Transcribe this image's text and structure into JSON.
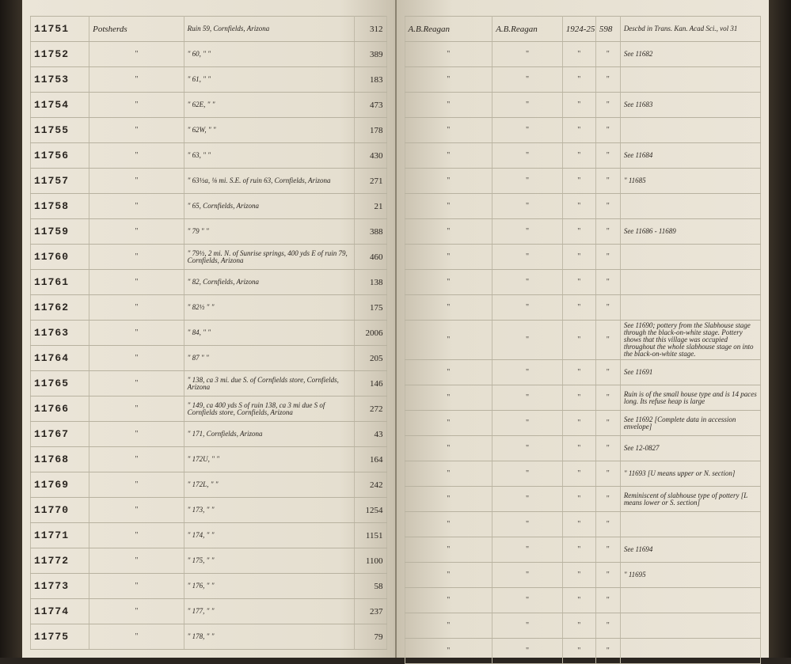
{
  "left_page": {
    "rows": [
      {
        "id": "11751",
        "name": "Potsherds",
        "location": "Ruin 59, Cornfields, Arizona",
        "count": "312"
      },
      {
        "id": "11752",
        "name": "\"",
        "location": "\"  60,    \"    \"",
        "count": "389"
      },
      {
        "id": "11753",
        "name": "\"",
        "location": "\"  61,    \"    \"",
        "count": "183"
      },
      {
        "id": "11754",
        "name": "\"",
        "location": "\"  62E,   \"    \"",
        "count": "473"
      },
      {
        "id": "11755",
        "name": "\"",
        "location": "\"  62W,   \"    \"",
        "count": "178"
      },
      {
        "id": "11756",
        "name": "\"",
        "location": "\"  63,    \"    \"",
        "count": "430"
      },
      {
        "id": "11757",
        "name": "\"",
        "location": "\"  63½a, ⅛ mi. S.E. of ruin 63, Cornfields, Arizona",
        "count": "271"
      },
      {
        "id": "11758",
        "name": "\"",
        "location": "\"  65, Cornfields, Arizona",
        "count": "21"
      },
      {
        "id": "11759",
        "name": "\"",
        "location": "\"  79    \"    \"",
        "count": "388"
      },
      {
        "id": "11760",
        "name": "\"",
        "location": "\"  79½, 2 mi. N. of Sunrise springs, 400 yds E of ruin 79, Cornfields, Arizona",
        "count": "460"
      },
      {
        "id": "11761",
        "name": "\"",
        "location": "\"  82, Cornfields, Arizona",
        "count": "138"
      },
      {
        "id": "11762",
        "name": "\"",
        "location": "\"  82½    \"    \"",
        "count": "175"
      },
      {
        "id": "11763",
        "name": "\"",
        "location": "\"  84,    \"    \"",
        "count": "2006"
      },
      {
        "id": "11764",
        "name": "\"",
        "location": "\"  87     \"    \"",
        "count": "205"
      },
      {
        "id": "11765",
        "name": "\"",
        "location": "\"  138, ca 3 mi. due S. of Cornfields store, Cornfields, Arizona",
        "count": "146"
      },
      {
        "id": "11766",
        "name": "\"",
        "location": "\"  149, ca 400 yds S of ruin 138, ca 3 mi due S of Cornfields store, Cornfields, Arizona",
        "count": "272"
      },
      {
        "id": "11767",
        "name": "\"",
        "location": "\"  171, Cornfields, Arizona",
        "count": "43"
      },
      {
        "id": "11768",
        "name": "\"",
        "location": "\"  172U,  \"    \"",
        "count": "164"
      },
      {
        "id": "11769",
        "name": "\"",
        "location": "\"  172L,  \"    \"",
        "count": "242"
      },
      {
        "id": "11770",
        "name": "\"",
        "location": "\"  173,   \"    \"",
        "count": "1254"
      },
      {
        "id": "11771",
        "name": "\"",
        "location": "\"  174,   \"    \"",
        "count": "1151"
      },
      {
        "id": "11772",
        "name": "\"",
        "location": "\"  175,   \"    \"",
        "count": "1100"
      },
      {
        "id": "11773",
        "name": "\"",
        "location": "\"  176,   \"    \"",
        "count": "58"
      },
      {
        "id": "11774",
        "name": "\"",
        "location": "\"  177,   \"    \"",
        "count": "237"
      },
      {
        "id": "11775",
        "name": "\"",
        "location": "\"  178,   \"    \"",
        "count": "79"
      }
    ]
  },
  "right_page": {
    "header": {
      "collector": "A.B.Reagan",
      "donor": "A.B.Reagan",
      "year": "1924-25",
      "acc": "598",
      "note": "Descbd in Trans. Kan. Acad Sci., vol 31"
    },
    "rows": [
      {
        "note": ""
      },
      {
        "note": "See 11682"
      },
      {
        "note": ""
      },
      {
        "note": "See 11683"
      },
      {
        "note": ""
      },
      {
        "note": "See 11684"
      },
      {
        "note": "\"  11685"
      },
      {
        "note": ""
      },
      {
        "note": "See 11686 - 11689"
      },
      {
        "note": ""
      },
      {
        "note": ""
      },
      {
        "note": ""
      },
      {
        "note": "See 11690; pottery from the Slabhouse stage through the black-on-white stage. Pottery shows that this village was occupied throughout the whole slabhouse stage on into the black-on-white stage."
      },
      {
        "note": "See 11691"
      },
      {
        "note": "Ruin is of the small house type and is 14 paces long. Its refuse heap is large"
      },
      {
        "note": "See 11692 [Complete data in accession envelope]"
      },
      {
        "note": "See 12-0827"
      },
      {
        "note": "\"  11693  [U means upper or N. section]"
      },
      {
        "note": "Reminiscent of slabhouse type of pottery [L means lower or S. section]"
      },
      {
        "note": ""
      },
      {
        "note": "See 11694"
      },
      {
        "note": "\"  11695"
      },
      {
        "note": ""
      },
      {
        "note": ""
      },
      {
        "note": ""
      }
    ]
  }
}
